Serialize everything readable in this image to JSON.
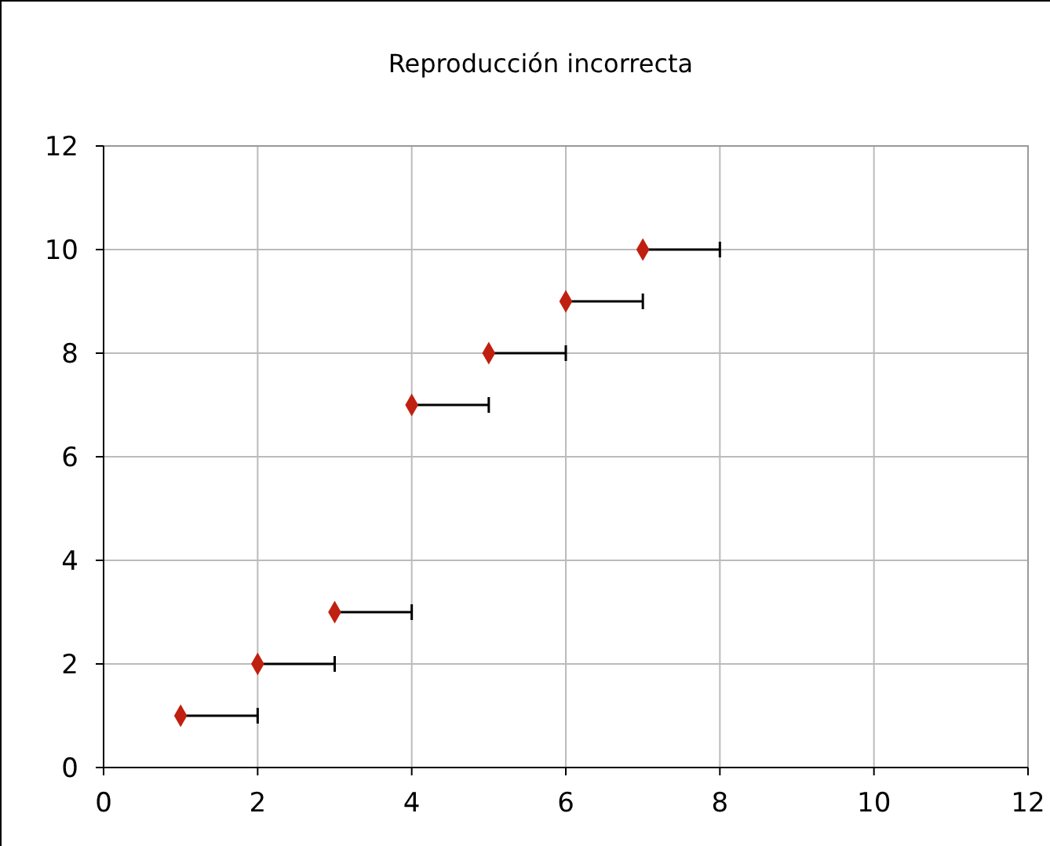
{
  "chart_data": {
    "type": "scatter",
    "title": "Reproducción incorrecta",
    "x": [
      1,
      2,
      3,
      4,
      5,
      6,
      7
    ],
    "series": [
      {
        "color": "#c0200f",
        "values": [
          1,
          2,
          3,
          7,
          8,
          9,
          10
        ],
        "xerrors": [
          [
            1,
            2
          ],
          [
            2,
            3
          ],
          [
            3,
            4
          ],
          [
            4,
            5
          ],
          [
            5,
            6
          ],
          [
            6,
            7
          ],
          [
            7,
            8
          ]
        ]
      }
    ],
    "xlim": [
      0,
      12
    ],
    "xticks": [
      0,
      2,
      4,
      6,
      8,
      10,
      12
    ],
    "ylim": [
      0,
      12
    ],
    "yticks": [
      0,
      2,
      4,
      6,
      8,
      10,
      12
    ],
    "grid": true,
    "marker": "diamond"
  }
}
